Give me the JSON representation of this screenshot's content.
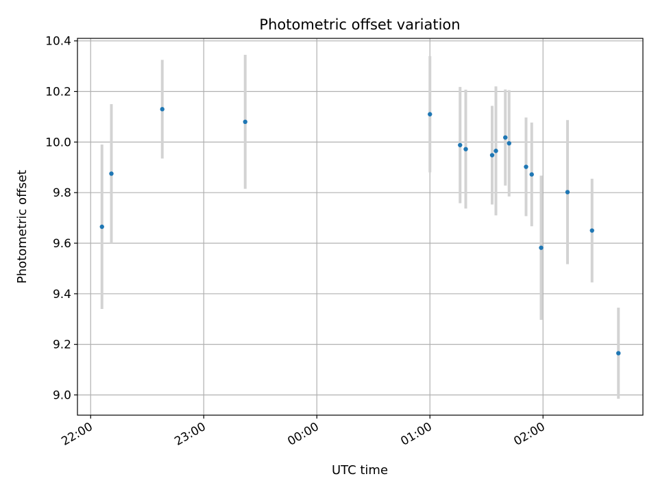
{
  "chart_data": {
    "type": "scatter",
    "title": "Photometric offset variation",
    "xlabel": "UTC time",
    "ylabel": "Photometric offset",
    "x_axis_kind": "time",
    "xlim": [
      "21:53",
      "02:53"
    ],
    "ylim": [
      8.92,
      10.41
    ],
    "x_ticks": [
      "22:00",
      "23:00",
      "00:00",
      "01:00",
      "02:00"
    ],
    "y_ticks": [
      "9.0",
      "9.2",
      "9.4",
      "9.6",
      "9.8",
      "10.0",
      "10.2",
      "10.4"
    ],
    "grid": true,
    "colors": {
      "point": "#1f77b4",
      "errorbar": "#d3d3d3",
      "grid": "#b0b0b0"
    },
    "series": [
      {
        "points": [
          {
            "time": "22:06",
            "y": 9.665,
            "yerr": 0.325
          },
          {
            "time": "22:11",
            "y": 9.875,
            "yerr": 0.275
          },
          {
            "time": "22:38",
            "y": 10.13,
            "yerr": 0.195
          },
          {
            "time": "23:22",
            "y": 10.08,
            "yerr": 0.265
          },
          {
            "time": "01:00",
            "y": 10.11,
            "yerr": 0.23
          },
          {
            "time": "01:16",
            "y": 9.988,
            "yerr": 0.23
          },
          {
            "time": "01:19",
            "y": 9.972,
            "yerr": 0.235
          },
          {
            "time": "01:33",
            "y": 9.948,
            "yerr": 0.195
          },
          {
            "time": "01:35",
            "y": 9.965,
            "yerr": 0.255
          },
          {
            "time": "01:40",
            "y": 10.018,
            "yerr": 0.19
          },
          {
            "time": "01:42",
            "y": 9.995,
            "yerr": 0.21
          },
          {
            "time": "01:51",
            "y": 9.902,
            "yerr": 0.195
          },
          {
            "time": "01:54",
            "y": 9.872,
            "yerr": 0.205
          },
          {
            "time": "01:59",
            "y": 9.582,
            "yerr": 0.285
          },
          {
            "time": "02:13",
            "y": 9.802,
            "yerr": 0.285
          },
          {
            "time": "02:26",
            "y": 9.65,
            "yerr": 0.205
          },
          {
            "time": "02:40",
            "y": 9.165,
            "yerr": 0.18
          }
        ]
      }
    ]
  }
}
